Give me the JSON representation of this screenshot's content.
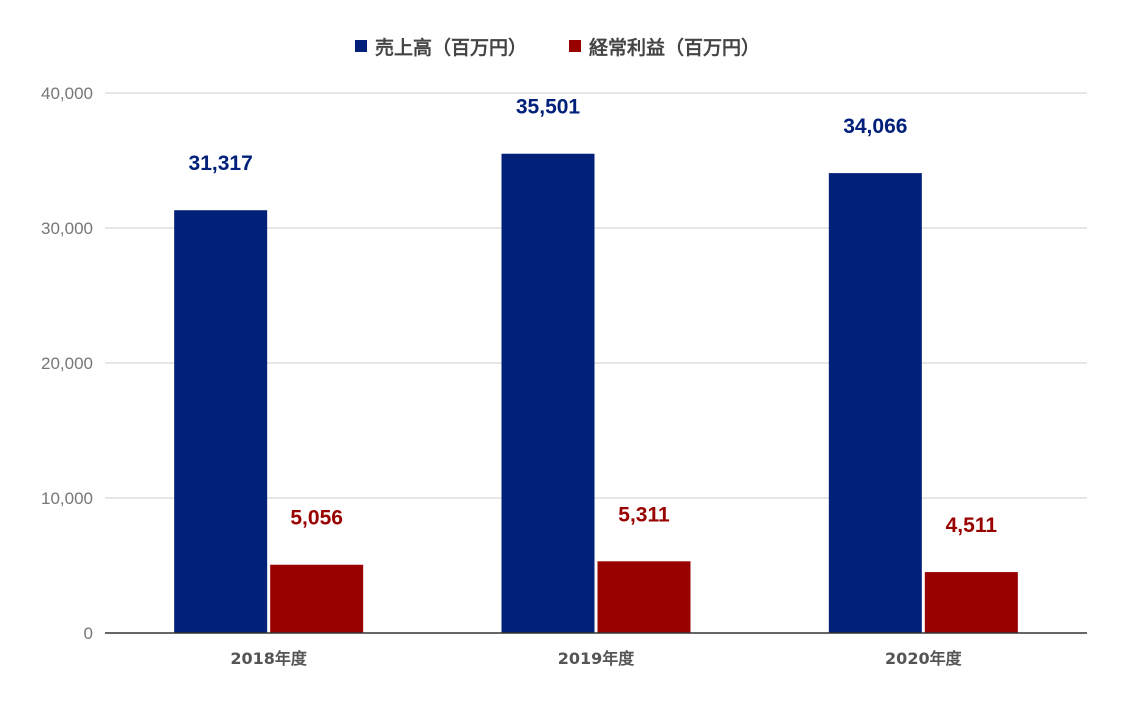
{
  "chart_data": {
    "type": "bar",
    "categories": [
      "2018年度",
      "2019年度",
      "2020年度"
    ],
    "series": [
      {
        "name": "売上高（百万円）",
        "values": [
          31317,
          35501,
          34066
        ],
        "value_labels": [
          "31,317",
          "35,501",
          "34,066"
        ],
        "color": "#00207a"
      },
      {
        "name": "経常利益（百万円）",
        "values": [
          5056,
          5311,
          4511
        ],
        "value_labels": [
          "5,056",
          "5,311",
          "4,511"
        ],
        "color": "#990000"
      }
    ],
    "ylim": [
      0,
      40000
    ],
    "yticks": [
      0,
      10000,
      20000,
      30000,
      40000
    ],
    "ytick_labels": [
      "0",
      "10,000",
      "20,000",
      "30,000",
      "40,000"
    ],
    "title": "",
    "xlabel": "",
    "ylabel": "",
    "legend_position": "top-center",
    "grid": true,
    "gridline_color": "#cccccc",
    "axis_color": "#333333"
  }
}
